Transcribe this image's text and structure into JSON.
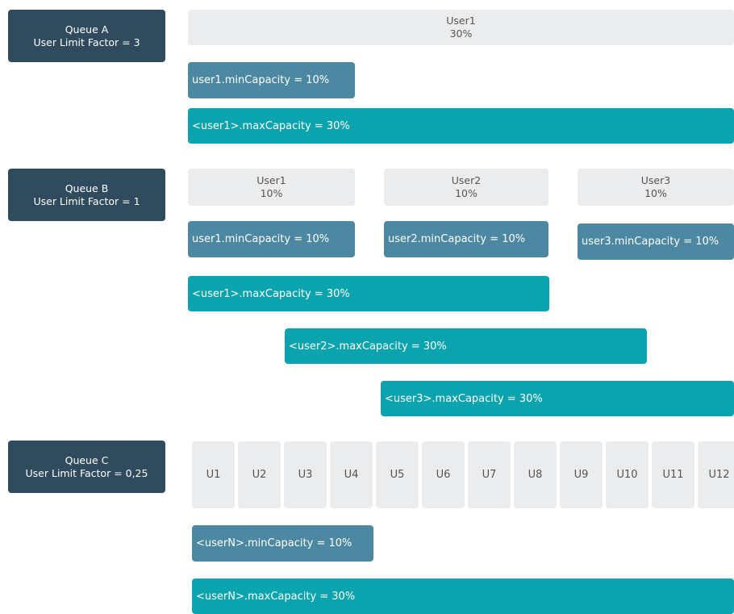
{
  "queues": [
    {
      "name": "Queue A",
      "factor": "User Limit Factor = 3",
      "users": [
        {
          "name": "User1",
          "share": "30%"
        }
      ],
      "min": [
        "user1.minCapacity = 10%"
      ],
      "max": [
        "<user1>.maxCapacity = 30%"
      ]
    },
    {
      "name": "Queue B",
      "factor": "User Limit Factor = 1",
      "users": [
        {
          "name": "User1",
          "share": "10%"
        },
        {
          "name": "User2",
          "share": "10%"
        },
        {
          "name": "User3",
          "share": "10%"
        }
      ],
      "min": [
        "user1.minCapacity = 10%",
        "user2.minCapacity = 10%",
        "user3.minCapacity = 10%"
      ],
      "max": [
        "<user1>.maxCapacity = 30%",
        "<user2>.maxCapacity = 30%",
        "<user3>.maxCapacity = 30%"
      ]
    },
    {
      "name": "Queue C",
      "factor": "User Limit Factor = 0,25",
      "users": [
        {
          "name": "U1"
        },
        {
          "name": "U2"
        },
        {
          "name": "U3"
        },
        {
          "name": "U4"
        },
        {
          "name": "U5"
        },
        {
          "name": "U6"
        },
        {
          "name": "U7"
        },
        {
          "name": "U8"
        },
        {
          "name": "U9"
        },
        {
          "name": "U10"
        },
        {
          "name": "U11"
        },
        {
          "name": "U12"
        }
      ],
      "min": [
        "<userN>.minCapacity = 10%"
      ],
      "max": [
        "<userN>.maxCapacity = 30%"
      ]
    }
  ]
}
